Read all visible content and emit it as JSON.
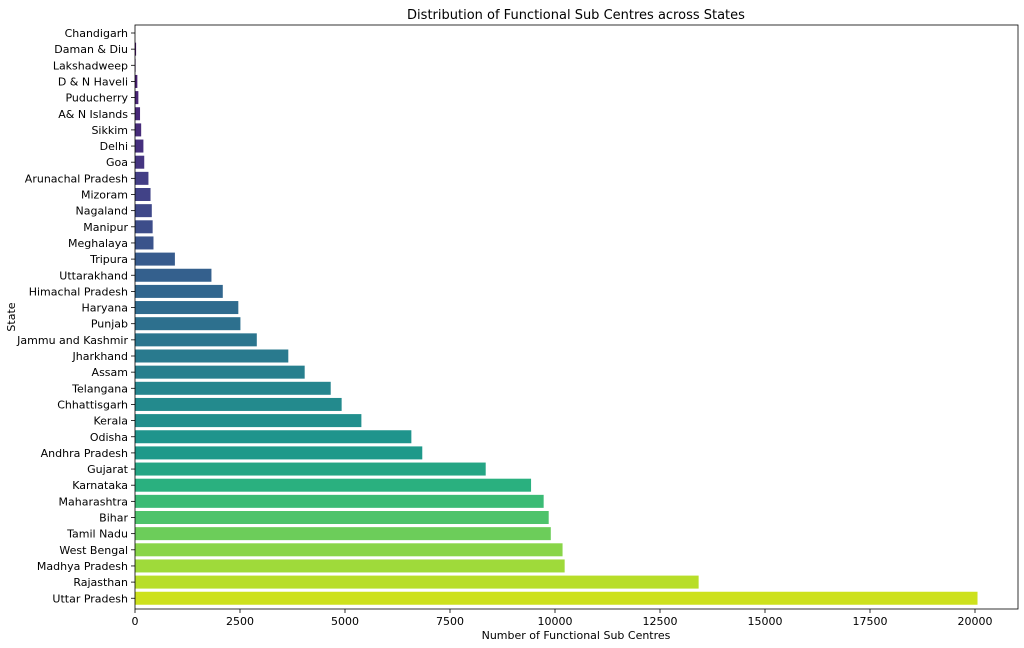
{
  "chart_data": {
    "type": "bar",
    "orientation": "horizontal",
    "title": "Distribution of Functional Sub Centres across States",
    "xlabel": "Number of Functional Sub Centres",
    "ylabel": "State",
    "xlim": [
      0,
      21000
    ],
    "xticks": [
      0,
      2500,
      5000,
      7500,
      10000,
      12500,
      15000,
      17500,
      20000
    ],
    "grid": false,
    "legend": "none",
    "palette": "viridis",
    "categories": [
      "Chandigarh",
      "Daman & Diu",
      "Lakshadweep",
      "D & N Haveli",
      "Puducherry",
      "A& N Islands",
      "Sikkim",
      "Delhi",
      "Goa",
      "Arunachal Pradesh",
      "Mizoram",
      "Nagaland",
      "Manipur",
      "Meghalaya",
      "Tripura",
      "Uttarakhand",
      "Himachal Pradesh",
      "Haryana",
      "Punjab",
      "Jammu and Kashmir",
      "Jharkhand",
      "Assam",
      "Telangana",
      "Chhattisgarh",
      "Kerala",
      "Odisha",
      "Andhra Pradesh",
      "Gujarat",
      "Karnataka",
      "Maharashtra",
      "Bihar",
      "Tamil Nadu",
      "West Bengal",
      "Madhya Pradesh",
      "Rajasthan",
      "Uttar Pradesh"
    ],
    "values": [
      0,
      26,
      14,
      56,
      80,
      120,
      147,
      200,
      220,
      320,
      370,
      400,
      420,
      440,
      950,
      1820,
      2090,
      2460,
      2510,
      2900,
      3650,
      4040,
      4660,
      4920,
      5390,
      6580,
      6840,
      8350,
      9430,
      9730,
      9850,
      9900,
      10180,
      10230,
      13420,
      20060
    ],
    "colors": [
      "#471365",
      "#481769",
      "#481c6e",
      "#482071",
      "#482475",
      "#472878",
      "#472c7a",
      "#46307e",
      "#453581",
      "#433e85",
      "#414287",
      "#3f4889",
      "#3d4d8a",
      "#3a538b",
      "#375b8d",
      "#34608d",
      "#31668e",
      "#2f6b8e",
      "#2d708e",
      "#2b758e",
      "#297a8e",
      "#277f8e",
      "#25858e",
      "#238a8d",
      "#218f8d",
      "#1f948c",
      "#1f998a",
      "#25a584",
      "#2ab07f",
      "#3bbb75",
      "#4ec36b",
      "#6ccd5a",
      "#89d548",
      "#9fda3a",
      "#b8de29",
      "#cde11d"
    ]
  }
}
